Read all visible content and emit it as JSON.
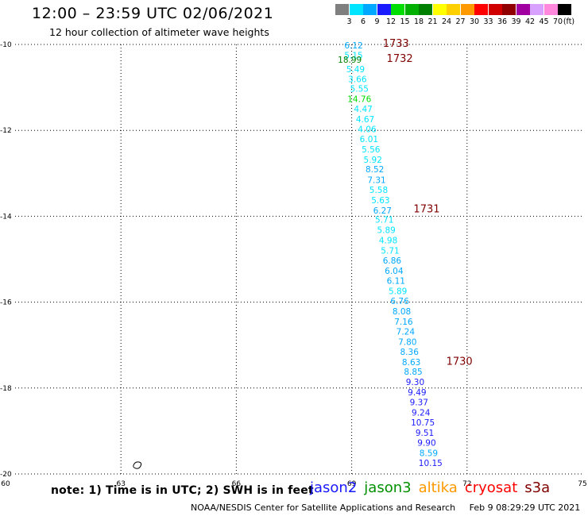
{
  "header": {
    "title": "12:00 – 23:59 UTC 02/06/2021",
    "subtitle": "12 hour collection of altimeter wave heights"
  },
  "colorbar": {
    "unit": "(ft)",
    "items": [
      {
        "label": "3",
        "color": "#7f7f7f"
      },
      {
        "label": "6",
        "color": "#00e5ff"
      },
      {
        "label": "9",
        "color": "#00a8ff"
      },
      {
        "label": "12",
        "color": "#1a1aff"
      },
      {
        "label": "15",
        "color": "#00dd00"
      },
      {
        "label": "18",
        "color": "#00b000"
      },
      {
        "label": "21",
        "color": "#008000"
      },
      {
        "label": "24",
        "color": "#ffff00"
      },
      {
        "label": "27",
        "color": "#ffd000"
      },
      {
        "label": "30",
        "color": "#ff9900"
      },
      {
        "label": "33",
        "color": "#ff0000"
      },
      {
        "label": "36",
        "color": "#d00000"
      },
      {
        "label": "39",
        "color": "#900000"
      },
      {
        "label": "42",
        "color": "#a000a0"
      },
      {
        "label": "45",
        "color": "#d8a0ff"
      },
      {
        "label": "70",
        "color": "#ff88dd"
      },
      {
        "label": "",
        "color": "#000000"
      }
    ]
  },
  "chart_data": {
    "type": "scatter",
    "title": "12:00 – 23:59 UTC 02/06/2021",
    "subtitle": "12 hour collection of altimeter wave heights",
    "xlim": [
      60,
      75
    ],
    "ylim": [
      -20,
      -10
    ],
    "x_ticks": [
      60,
      63,
      66,
      69,
      72,
      75
    ],
    "x_tick_labels": [
      "60",
      "63",
      "66",
      "69",
      "72",
      "75"
    ],
    "y_ticks": [
      -10,
      -12,
      -14,
      -16,
      -18,
      -20
    ],
    "y_tick_labels": [
      "-10",
      "-12",
      "-14",
      "-16",
      "-18",
      "-20"
    ],
    "grid": true,
    "points": [
      {
        "lon": 69.05,
        "lat": -10.02,
        "swh": "6.12",
        "color": "#00a8ff"
      },
      {
        "lon": 69.05,
        "lat": -10.25,
        "swh": "5.15",
        "color": "#00e5ff"
      },
      {
        "lon": 68.95,
        "lat": -10.35,
        "swh": "18.99",
        "color": "#008000"
      },
      {
        "lon": 69.1,
        "lat": -10.57,
        "swh": "5.49",
        "color": "#00e5ff"
      },
      {
        "lon": 69.15,
        "lat": -10.8,
        "swh": "3.66",
        "color": "#00e5ff"
      },
      {
        "lon": 69.2,
        "lat": -11.03,
        "swh": "5.55",
        "color": "#00e5ff"
      },
      {
        "lon": 69.2,
        "lat": -11.27,
        "swh": "14.76",
        "color": "#00dd00"
      },
      {
        "lon": 69.3,
        "lat": -11.5,
        "swh": "4.47",
        "color": "#00e5ff"
      },
      {
        "lon": 69.35,
        "lat": -11.74,
        "swh": "4.67",
        "color": "#00e5ff"
      },
      {
        "lon": 69.4,
        "lat": -11.97,
        "swh": "4.06",
        "color": "#00e5ff"
      },
      {
        "lon": 69.45,
        "lat": -12.2,
        "swh": "6.01",
        "color": "#00e5ff"
      },
      {
        "lon": 69.5,
        "lat": -12.44,
        "swh": "5.56",
        "color": "#00e5ff"
      },
      {
        "lon": 69.55,
        "lat": -12.68,
        "swh": "5.92",
        "color": "#00e5ff"
      },
      {
        "lon": 69.6,
        "lat": -12.9,
        "swh": "8.52",
        "color": "#00a8ff"
      },
      {
        "lon": 69.65,
        "lat": -13.15,
        "swh": "7.31",
        "color": "#00a8ff"
      },
      {
        "lon": 69.7,
        "lat": -13.38,
        "swh": "5.58",
        "color": "#00e5ff"
      },
      {
        "lon": 69.75,
        "lat": -13.62,
        "swh": "5.63",
        "color": "#00e5ff"
      },
      {
        "lon": 69.8,
        "lat": -13.86,
        "swh": "6.27",
        "color": "#00a8ff"
      },
      {
        "lon": 69.85,
        "lat": -14.08,
        "swh": "5.71",
        "color": "#00e5ff"
      },
      {
        "lon": 69.9,
        "lat": -14.32,
        "swh": "5.89",
        "color": "#00e5ff"
      },
      {
        "lon": 69.95,
        "lat": -14.56,
        "swh": "4.98",
        "color": "#00e5ff"
      },
      {
        "lon": 70.0,
        "lat": -14.8,
        "swh": "5.71",
        "color": "#00e5ff"
      },
      {
        "lon": 70.05,
        "lat": -15.03,
        "swh": "6.86",
        "color": "#00a8ff"
      },
      {
        "lon": 70.1,
        "lat": -15.27,
        "swh": "6.04",
        "color": "#00a8ff"
      },
      {
        "lon": 70.15,
        "lat": -15.5,
        "swh": "6.11",
        "color": "#00a8ff"
      },
      {
        "lon": 70.2,
        "lat": -15.74,
        "swh": "5.89",
        "color": "#00e5ff"
      },
      {
        "lon": 70.25,
        "lat": -15.97,
        "swh": "6.76",
        "color": "#00a8ff"
      },
      {
        "lon": 70.3,
        "lat": -16.21,
        "swh": "8.08",
        "color": "#00a8ff"
      },
      {
        "lon": 70.35,
        "lat": -16.45,
        "swh": "7.16",
        "color": "#00a8ff"
      },
      {
        "lon": 70.4,
        "lat": -16.68,
        "swh": "7.24",
        "color": "#00a8ff"
      },
      {
        "lon": 70.45,
        "lat": -16.92,
        "swh": "7.80",
        "color": "#00a8ff"
      },
      {
        "lon": 70.5,
        "lat": -17.15,
        "swh": "8.36",
        "color": "#00a8ff"
      },
      {
        "lon": 70.55,
        "lat": -17.39,
        "swh": "8.63",
        "color": "#00a8ff"
      },
      {
        "lon": 70.6,
        "lat": -17.62,
        "swh": "8.85",
        "color": "#00a8ff"
      },
      {
        "lon": 70.65,
        "lat": -17.86,
        "swh": "9.30",
        "color": "#1a1aff"
      },
      {
        "lon": 70.7,
        "lat": -18.1,
        "swh": "9.49",
        "color": "#1a1aff"
      },
      {
        "lon": 70.75,
        "lat": -18.33,
        "swh": "9.37",
        "color": "#1a1aff"
      },
      {
        "lon": 70.8,
        "lat": -18.57,
        "swh": "9.24",
        "color": "#1a1aff"
      },
      {
        "lon": 70.85,
        "lat": -18.8,
        "swh": "10.75",
        "color": "#1a1aff"
      },
      {
        "lon": 70.9,
        "lat": -19.04,
        "swh": "9.51",
        "color": "#1a1aff"
      },
      {
        "lon": 70.95,
        "lat": -19.27,
        "swh": "9.90",
        "color": "#1a1aff"
      },
      {
        "lon": 71.0,
        "lat": -19.51,
        "swh": "8.59",
        "color": "#00a8ff"
      },
      {
        "lon": 71.05,
        "lat": -19.74,
        "swh": "10.15",
        "color": "#1a1aff"
      }
    ],
    "time_labels": [
      {
        "lon": 70.15,
        "lat": -9.96,
        "text": "1733"
      },
      {
        "lon": 70.25,
        "lat": -10.31,
        "text": "1732"
      },
      {
        "lon": 70.95,
        "lat": -13.82,
        "text": "1731"
      },
      {
        "lon": 71.8,
        "lat": -17.37,
        "text": "1730"
      }
    ],
    "time_label_color": "#800000"
  },
  "footer": {
    "note": "note: 1) Time is in UTC; 2) SWH is in feet",
    "satellites": [
      {
        "name": "jason2",
        "color": "#1a1aff"
      },
      {
        "name": "jason3",
        "color": "#009000"
      },
      {
        "name": "altika",
        "color": "#ff9900"
      },
      {
        "name": "cryosat",
        "color": "#ff0000"
      },
      {
        "name": "s3a",
        "color": "#800000"
      }
    ],
    "credit_org": "NOAA/NESDIS Center for Satellite Applications and Research",
    "credit_time": "Feb  9 08:29:29 UTC 2021"
  }
}
